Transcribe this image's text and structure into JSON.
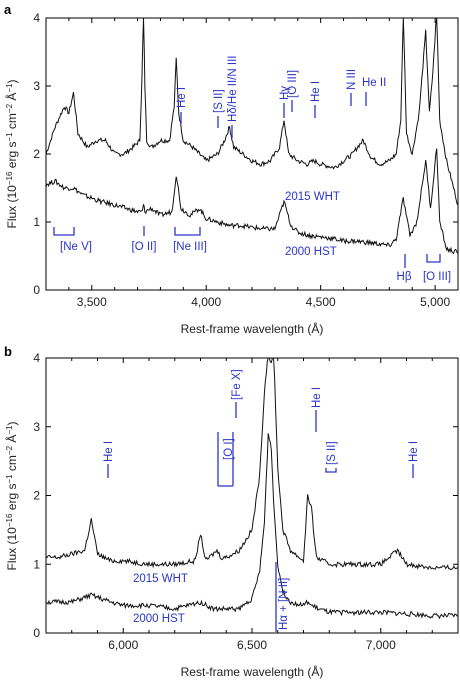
{
  "chart_data": [
    {
      "panel_label": "a",
      "type": "line",
      "xlabel": "Rest-frame wavelength (Å)",
      "ylabel": "Flux (10",
      "ylabel_sup1": "−16",
      "ylabel_mid": " erg s",
      "ylabel_sup2": "−1",
      "ylabel_mid2": " cm",
      "ylabel_sup3": "−2",
      "ylabel_mid3": " Å",
      "ylabel_sup4": "−1",
      "ylabel_end": ")",
      "xlim": [
        3300,
        5100
      ],
      "ylim": [
        0,
        4
      ],
      "xticks": [
        "3,500",
        "4,000",
        "4,500",
        "5,000"
      ],
      "xtick_values": [
        3500,
        4000,
        4500,
        5000
      ],
      "yticks": [
        "0",
        "1",
        "2",
        "3",
        "4"
      ],
      "ytick_values": [
        0,
        1,
        2,
        3,
        4
      ],
      "accent_color": "#2b35c8",
      "series": [
        {
          "name": "2015 WHT",
          "x": [
            3300,
            3340,
            3380,
            3400,
            3420,
            3440,
            3480,
            3520,
            3560,
            3600,
            3640,
            3680,
            3710,
            3720,
            3726,
            3732,
            3740,
            3760,
            3800,
            3840,
            3860,
            3869,
            3880,
            3900,
            3940,
            3970,
            4000,
            4050,
            4080,
            4102,
            4120,
            4160,
            4200,
            4240,
            4280,
            4320,
            4340,
            4360,
            4400,
            4440,
            4471,
            4500,
            4560,
            4600,
            4640,
            4660,
            4686,
            4720,
            4760,
            4800,
            4830,
            4850,
            4861,
            4875,
            4900,
            4930,
            4959,
            4975,
            4990,
            5007,
            5020,
            5050,
            5100
          ],
          "y": [
            2.0,
            2.4,
            2.7,
            2.6,
            2.9,
            2.3,
            2.1,
            2.2,
            2.2,
            2.0,
            2.0,
            2.1,
            2.2,
            3.2,
            4.1,
            3.0,
            2.2,
            2.1,
            2.2,
            2.2,
            2.7,
            3.4,
            2.6,
            2.2,
            2.1,
            2.0,
            1.9,
            2.0,
            2.2,
            2.4,
            2.1,
            2.0,
            1.9,
            1.85,
            1.9,
            2.1,
            2.5,
            2.0,
            1.9,
            1.85,
            1.9,
            1.85,
            1.8,
            1.9,
            2.0,
            2.1,
            2.2,
            1.95,
            1.85,
            1.9,
            2.0,
            2.5,
            4.1,
            2.3,
            2.0,
            2.6,
            3.8,
            2.6,
            3.2,
            4.1,
            2.5,
            1.9,
            1.25
          ]
        },
        {
          "name": "2000 HST",
          "x": [
            3300,
            3340,
            3380,
            3420,
            3460,
            3500,
            3540,
            3600,
            3650,
            3700,
            3720,
            3726,
            3732,
            3760,
            3800,
            3850,
            3869,
            3890,
            3930,
            3970,
            4000,
            4050,
            4100,
            4150,
            4200,
            4250,
            4300,
            4340,
            4370,
            4400,
            4450,
            4500,
            4550,
            4600,
            4650,
            4700,
            4750,
            4800,
            4830,
            4861,
            4890,
            4920,
            4959,
            4980,
            5007,
            5020,
            5050,
            5100
          ],
          "y": [
            1.55,
            1.6,
            1.5,
            1.5,
            1.4,
            1.35,
            1.3,
            1.25,
            1.2,
            1.15,
            1.15,
            1.25,
            1.15,
            1.2,
            1.1,
            1.15,
            1.7,
            1.2,
            1.1,
            1.2,
            1.05,
            1.0,
            0.95,
            0.95,
            0.92,
            0.9,
            0.9,
            1.3,
            0.95,
            0.85,
            0.8,
            0.78,
            0.76,
            0.72,
            0.72,
            0.7,
            0.68,
            0.65,
            0.75,
            1.35,
            0.8,
            1.0,
            1.9,
            1.2,
            2.1,
            1.0,
            0.6,
            0.55
          ]
        }
      ],
      "annotations": [
        "He I",
        "[S II]",
        "Hδ/He II/N III",
        "Hγ",
        "[O III]",
        "He I",
        "N III",
        "He II",
        "[Ne V]",
        "[O II]",
        "[Ne III]",
        "Hβ",
        "[O III]",
        "2015 WHT",
        "2000 HST"
      ]
    },
    {
      "panel_label": "b",
      "type": "line",
      "xlabel": "Rest-frame wavelength (Å)",
      "xlim": [
        5700,
        7300
      ],
      "ylim": [
        0,
        4
      ],
      "xticks": [
        "6,000",
        "6,500",
        "7,000"
      ],
      "xtick_values": [
        6000,
        6500,
        7000
      ],
      "yticks": [
        "0",
        "1",
        "2",
        "3",
        "4"
      ],
      "ytick_values": [
        0,
        1,
        2,
        3,
        4
      ],
      "series": [
        {
          "name": "2015 WHT",
          "x": [
            5700,
            5750,
            5800,
            5850,
            5876,
            5900,
            5950,
            6000,
            6100,
            6200,
            6280,
            6300,
            6320,
            6364,
            6380,
            6400,
            6450,
            6500,
            6530,
            6548,
            6563,
            6575,
            6584,
            6600,
            6620,
            6650,
            6700,
            6716,
            6731,
            6750,
            6800,
            6900,
            7000,
            7065,
            7100,
            7200,
            7300
          ],
          "y": [
            1.1,
            1.1,
            1.15,
            1.2,
            1.65,
            1.15,
            1.05,
            1.05,
            1.0,
            1.0,
            1.05,
            1.45,
            1.05,
            1.2,
            1.1,
            1.1,
            1.2,
            1.5,
            2.3,
            3.5,
            4.1,
            3.9,
            4.1,
            2.4,
            1.5,
            1.2,
            1.05,
            2.0,
            1.8,
            1.1,
            1.0,
            1.0,
            1.0,
            1.2,
            1.0,
            0.95,
            0.95
          ]
        },
        {
          "name": "2000 HST",
          "x": [
            5700,
            5750,
            5800,
            5876,
            5950,
            6000,
            6100,
            6200,
            6300,
            6350,
            6400,
            6450,
            6500,
            6530,
            6548,
            6563,
            6575,
            6584,
            6600,
            6620,
            6650,
            6700,
            6716,
            6731,
            6760,
            6800,
            6900,
            7000,
            7100,
            7200,
            7300
          ],
          "y": [
            0.45,
            0.45,
            0.45,
            0.55,
            0.45,
            0.4,
            0.4,
            0.35,
            0.45,
            0.35,
            0.35,
            0.35,
            0.5,
            0.9,
            1.6,
            2.9,
            2.7,
            1.9,
            1.0,
            0.6,
            0.45,
            0.4,
            0.45,
            0.4,
            0.35,
            0.3,
            0.3,
            0.3,
            0.28,
            0.25,
            0.25
          ]
        }
      ],
      "annotations": [
        "He I",
        "[O I]",
        "[Fe X]",
        "He I",
        "[S II]",
        "He I",
        "2015 WHT",
        "2000 HST",
        "Hα + [N II]"
      ]
    }
  ]
}
